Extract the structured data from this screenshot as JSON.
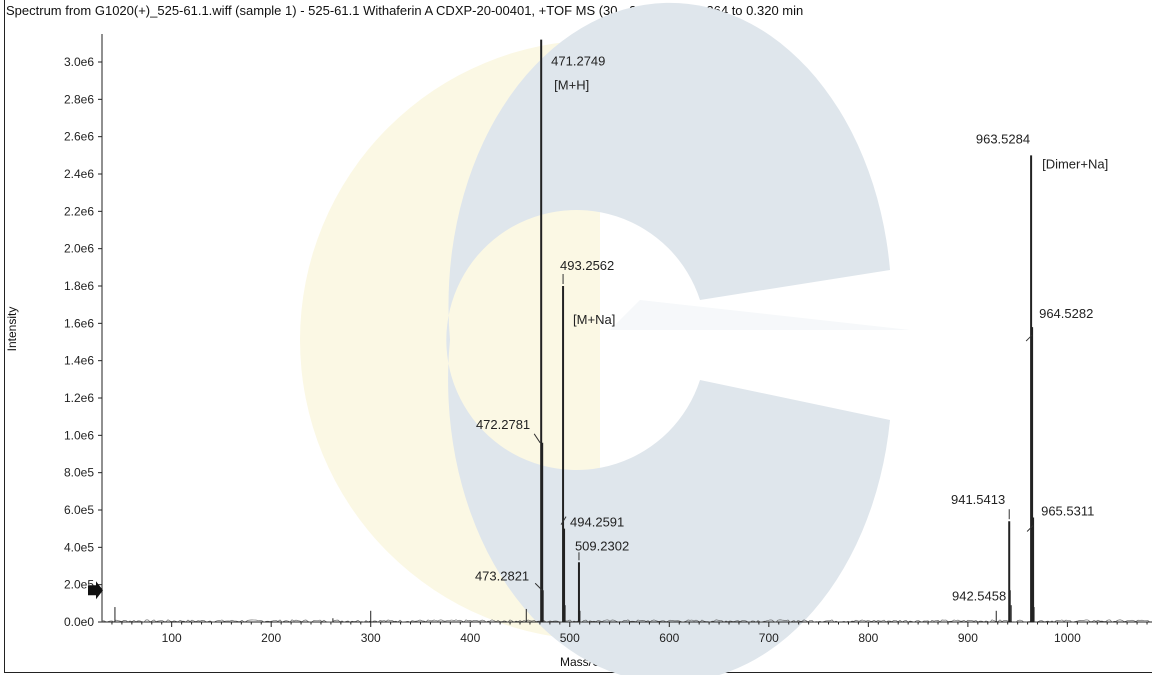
{
  "chart_data": {
    "type": "line",
    "title": "Spectrum from G1020(+)_525-61.1.wiff (sample 1) - 525-61.1 Withaferin A CDXP-20-00401, +TOF MS (30 - 2000) from 0.264 to 0.320 min",
    "xlabel": "Mass/Charge, Da",
    "ylabel": "Intensity",
    "xlim": [
      30,
      1085
    ],
    "ylim": [
      0,
      3150000
    ],
    "x_ticks": [
      "100",
      "200",
      "300",
      "400",
      "500",
      "600",
      "700",
      "800",
      "900",
      "1000"
    ],
    "y_ticks": [
      "0.0e0",
      "2.0e5",
      "4.0e5",
      "6.0e5",
      "8.0e5",
      "1.0e6",
      "1.2e6",
      "1.4e6",
      "1.6e6",
      "1.8e6",
      "2.0e6",
      "2.2e6",
      "2.4e6",
      "2.6e6",
      "2.8e6",
      "3.0e6"
    ],
    "grid": false,
    "peaks": [
      {
        "mz": 471.2749,
        "intensity": 3120000
      },
      {
        "mz": 472.2781,
        "intensity": 960000
      },
      {
        "mz": 473.2821,
        "intensity": 170000
      },
      {
        "mz": 493.2562,
        "intensity": 1800000
      },
      {
        "mz": 494.2591,
        "intensity": 500000
      },
      {
        "mz": 509.2302,
        "intensity": 320000
      },
      {
        "mz": 941.5413,
        "intensity": 540000
      },
      {
        "mz": 942.5458,
        "intensity": 170000
      },
      {
        "mz": 963.5284,
        "intensity": 2500000
      },
      {
        "mz": 964.5282,
        "intensity": 1580000
      },
      {
        "mz": 965.5311,
        "intensity": 560000
      },
      {
        "mz": 510.2,
        "intensity": 60000
      },
      {
        "mz": 456.3,
        "intensity": 70000
      },
      {
        "mz": 495.3,
        "intensity": 90000
      },
      {
        "mz": 928.5,
        "intensity": 60000
      },
      {
        "mz": 943.5,
        "intensity": 90000
      },
      {
        "mz": 966.5,
        "intensity": 80000
      },
      {
        "mz": 300.0,
        "intensity": 60000
      },
      {
        "mz": 43.0,
        "intensity": 80000
      },
      {
        "mz": 262.0,
        "intensity": 20000
      }
    ],
    "annotations": [
      {
        "text": "471.2749",
        "mz": 471.2749,
        "intensity": 3120000
      },
      {
        "text": "[M+H]",
        "mz": 471.2749,
        "intensity": 3120000
      },
      {
        "text": "472.2781",
        "mz": 472.2781,
        "intensity": 960000
      },
      {
        "text": "473.2821",
        "mz": 473.2821,
        "intensity": 170000
      },
      {
        "text": "493.2562",
        "mz": 493.2562,
        "intensity": 1800000
      },
      {
        "text": "[M+Na]",
        "mz": 493.2562,
        "intensity": 1800000
      },
      {
        "text": "494.2591",
        "mz": 494.2591,
        "intensity": 500000
      },
      {
        "text": "509.2302",
        "mz": 509.2302,
        "intensity": 320000
      },
      {
        "text": "941.5413",
        "mz": 941.5413,
        "intensity": 540000
      },
      {
        "text": "942.5458",
        "mz": 942.5458,
        "intensity": 170000
      },
      {
        "text": "963.5284",
        "mz": 963.5284,
        "intensity": 2500000
      },
      {
        "text": "[Dimer+Na]",
        "mz": 963.5284,
        "intensity": 2500000
      },
      {
        "text": "964.5282",
        "mz": 964.5282,
        "intensity": 1580000
      },
      {
        "text": "965.5311",
        "mz": 965.5311,
        "intensity": 560000
      }
    ],
    "threshold_marker": 170000,
    "colors": {
      "peak": "#222222",
      "axis": "#222222",
      "watermark_gray": "#dfe6ec",
      "watermark_yellow": "#fbf8e4"
    }
  }
}
